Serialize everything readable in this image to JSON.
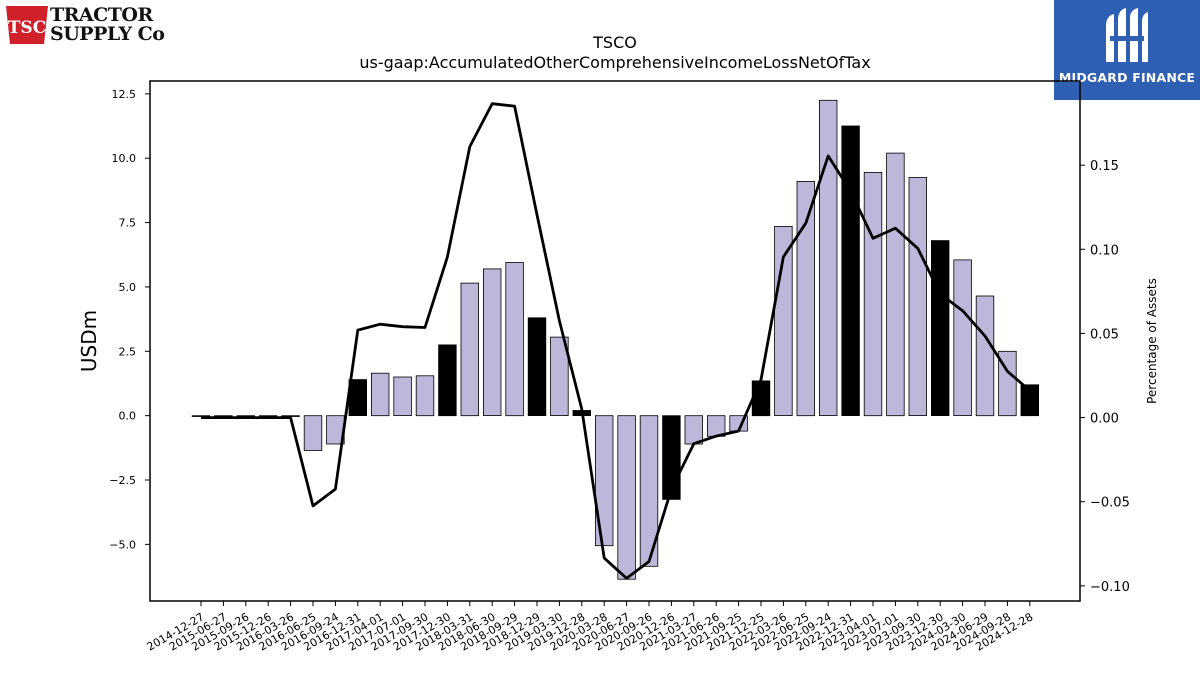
{
  "logos": {
    "left_line1": "TRACTOR",
    "left_line2": "SUPPLY Co",
    "left_badge": "TSC",
    "right_text": "MIDGARD FINANCE",
    "right_bg": "#2f5fb3"
  },
  "chart_data": {
    "type": "bar",
    "title": "TSCO",
    "subtitle": "us-gaap:AccumulatedOtherComprehensiveIncomeLossNetOfTax",
    "ylabel": "USDm",
    "y2label": "Percentage of Assets",
    "ylim": [
      -7.2,
      13.0
    ],
    "y2lim": [
      -0.109,
      0.2
    ],
    "yticks": [
      -5.0,
      -2.5,
      0.0,
      2.5,
      5.0,
      7.5,
      10.0,
      12.5
    ],
    "ytick_labels": [
      "−5.0",
      "−2.5",
      "0.0",
      "2.5",
      "5.0",
      "7.5",
      "10.0",
      "12.5"
    ],
    "y2ticks": [
      -0.1,
      -0.05,
      0.0,
      0.05,
      0.1,
      0.15
    ],
    "y2tick_labels": [
      "−0.10",
      "−0.05",
      "0.00",
      "0.05",
      "0.10",
      "0.15"
    ],
    "categories": [
      "2014-12-27",
      "2015-06-27",
      "2015-09-26",
      "2015-12-26",
      "2016-03-26",
      "2016-06-25",
      "2016-09-24",
      "2016-12-31",
      "2017-04-01",
      "2017-07-01",
      "2017-09-30",
      "2017-12-30",
      "2018-03-31",
      "2018-06-30",
      "2018-09-29",
      "2018-12-29",
      "2019-03-30",
      "2019-12-28",
      "2020-03-28",
      "2020-06-27",
      "2020-09-26",
      "2020-12-26",
      "2021-03-27",
      "2021-06-26",
      "2021-09-25",
      "2021-12-25",
      "2022-03-26",
      "2022-06-25",
      "2022-09-24",
      "2022-12-31",
      "2023-04-01",
      "2023-07-01",
      "2023-09-30",
      "2023-12-30",
      "2024-03-30",
      "2024-06-29",
      "2024-09-28",
      "2024-12-28"
    ],
    "values": [
      0.0,
      0.0,
      0.0,
      0.0,
      0.0,
      -1.35,
      -1.1,
      1.4,
      1.65,
      1.5,
      1.55,
      2.75,
      5.15,
      5.7,
      5.95,
      3.8,
      3.05,
      0.2,
      -5.05,
      -6.35,
      -5.85,
      -3.25,
      -1.1,
      -0.8,
      -0.6,
      1.35,
      7.35,
      9.1,
      12.25,
      11.25,
      9.45,
      10.2,
      9.25,
      6.8,
      6.05,
      4.65,
      2.5,
      1.2
    ],
    "highlight": [
      false,
      false,
      false,
      false,
      false,
      false,
      false,
      true,
      false,
      false,
      false,
      true,
      false,
      false,
      false,
      true,
      false,
      true,
      false,
      false,
      false,
      true,
      false,
      false,
      false,
      true,
      false,
      false,
      false,
      true,
      false,
      false,
      false,
      true,
      false,
      false,
      false,
      true
    ],
    "line_values": [
      0.0,
      0.0,
      0.0,
      0.0,
      0.0,
      -0.0525,
      -0.0425,
      0.052,
      0.0555,
      0.054,
      0.0535,
      0.0955,
      0.161,
      0.1865,
      0.185,
      0.1205,
      0.0575,
      0.005,
      -0.0835,
      -0.0955,
      -0.0855,
      -0.0425,
      -0.0155,
      -0.011,
      -0.008,
      0.0225,
      0.0955,
      0.1155,
      0.1555,
      0.1345,
      0.1065,
      0.1125,
      0.1005,
      0.0735,
      0.0635,
      0.0485,
      0.0275,
      0.016
    ],
    "colors": {
      "bar": "#bdb8d9",
      "bar_highlight": "#000000",
      "line": "#000000"
    },
    "grid": false,
    "legend": "none"
  }
}
